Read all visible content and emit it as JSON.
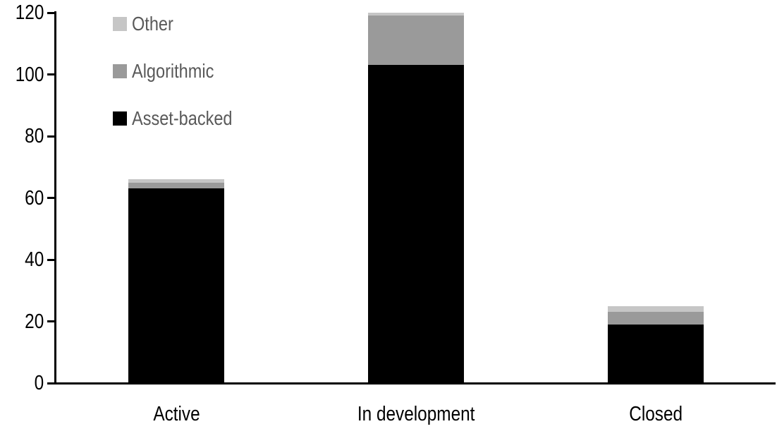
{
  "chart_data": {
    "type": "bar",
    "stacked": true,
    "categories": [
      "Active",
      "In development",
      "Closed"
    ],
    "series": [
      {
        "name": "Asset-backed",
        "color": "#000000",
        "values": [
          63,
          103,
          19
        ]
      },
      {
        "name": "Algorithmic",
        "color": "#9a9a9a",
        "values": [
          2,
          16,
          4
        ]
      },
      {
        "name": "Other",
        "color": "#c6c6c6",
        "values": [
          1,
          1,
          2
        ]
      }
    ],
    "totals": [
      66,
      120,
      25
    ],
    "ylim": [
      0,
      120
    ],
    "ytick_labels": [
      "0",
      "20",
      "40",
      "60",
      "80",
      "100",
      "120"
    ],
    "xlabel": "",
    "ylabel": "",
    "grid": false,
    "legend": {
      "position": "top-left",
      "entries_top_to_bottom": [
        "Other",
        "Algorithmic",
        "Asset-backed"
      ]
    }
  },
  "styles": {
    "background": "#ffffff",
    "axis_color": "#000000",
    "tick_label_color": "#000000",
    "category_label_color": "#000000",
    "legend_text_color": "#595959"
  }
}
